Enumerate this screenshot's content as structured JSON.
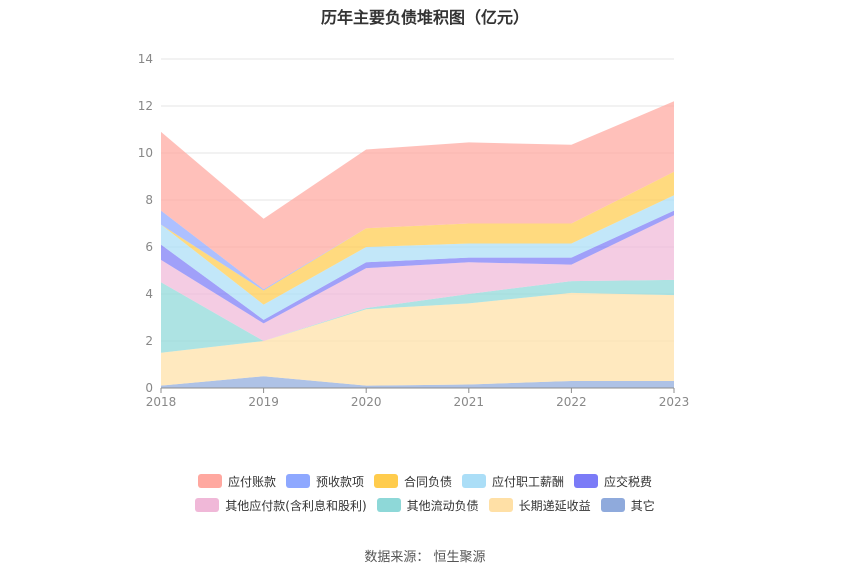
{
  "title": "历年主要负债堆积图（亿元）",
  "source": "数据来源：  恒生聚源",
  "chart_data": {
    "type": "area",
    "stacked": true,
    "categories": [
      "2018",
      "2019",
      "2020",
      "2021",
      "2022",
      "2023"
    ],
    "ylim": [
      0,
      14
    ],
    "yticks": [
      "0",
      "2",
      "4",
      "6",
      "8",
      "10",
      "12",
      "14"
    ],
    "grid": true,
    "legend_position": "bottom",
    "series": [
      {
        "name": "其它",
        "color": "#8FAADC",
        "values": [
          0.1,
          0.5,
          0.1,
          0.15,
          0.3,
          0.3
        ]
      },
      {
        "name": "长期递延收益",
        "color": "#FFE0A6",
        "values": [
          1.4,
          1.5,
          3.25,
          3.45,
          3.75,
          3.65
        ]
      },
      {
        "name": "其他流动负债",
        "color": "#8ED8D8",
        "values": [
          3.0,
          0.0,
          0.05,
          0.4,
          0.5,
          0.65
        ]
      },
      {
        "name": "其他应付款(含利息和股利)",
        "color": "#F0B8D8",
        "values": [
          0.95,
          0.75,
          1.7,
          1.35,
          0.7,
          2.75
        ]
      },
      {
        "name": "应交税费",
        "color": "#7B7BF7",
        "values": [
          0.65,
          0.15,
          0.25,
          0.2,
          0.3,
          0.2
        ]
      },
      {
        "name": "应付职工薪酬",
        "color": "#ABDEF7",
        "values": [
          0.85,
          0.65,
          0.65,
          0.6,
          0.6,
          0.65
        ]
      },
      {
        "name": "合同负债",
        "color": "#FFCC4D",
        "values": [
          0.0,
          0.6,
          0.8,
          0.85,
          0.85,
          1.0
        ]
      },
      {
        "name": "预收款项",
        "color": "#8EA8FF",
        "values": [
          0.6,
          0.05,
          0.0,
          0.0,
          0.0,
          0.0
        ]
      },
      {
        "name": "应付账款",
        "color": "#FFA8A0",
        "values": [
          3.35,
          3.0,
          3.35,
          3.45,
          3.35,
          3.0
        ]
      }
    ]
  },
  "legend": {
    "row1": [
      "应付账款",
      "预收款项",
      "合同负债",
      "应付职工薪酬",
      "应交税费"
    ],
    "row2": [
      "其他应付款(含利息和股利)",
      "其他流动负债",
      "长期递延收益",
      "其它"
    ]
  }
}
